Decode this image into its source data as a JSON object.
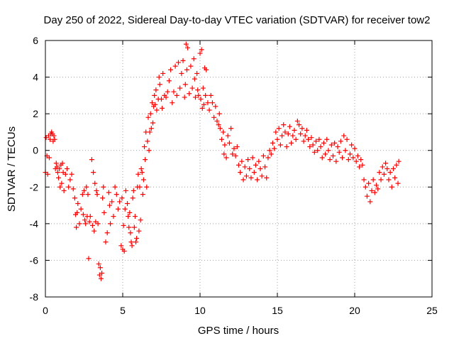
{
  "chart_data": {
    "type": "scatter",
    "title": "Day 250 of 2022, Sidereal Day-to-day VTEC variation (SDTVAR) for receiver tow2",
    "xlabel": "GPS time / hours",
    "ylabel": "SDTVAR / TECUs",
    "xlim": [
      0,
      25
    ],
    "ylim": [
      -8,
      6
    ],
    "xticks": [
      0,
      5,
      10,
      15,
      20,
      25
    ],
    "yticks": [
      -8,
      -6,
      -4,
      -2,
      0,
      2,
      4,
      6
    ],
    "xtick_labels": [
      "0",
      "5",
      "10",
      "15",
      "20",
      "25"
    ],
    "ytick_labels": [
      "-8",
      "-6",
      "-4",
      "-2",
      "0",
      "2",
      "4",
      "6"
    ],
    "grid": true,
    "marker": "+",
    "series": [
      {
        "name": "SDTVAR",
        "color": "#ff0000",
        "points": [
          [
            0.0,
            -1.2
          ],
          [
            0.05,
            0.7
          ],
          [
            0.1,
            -0.3
          ],
          [
            0.15,
            -1.3
          ],
          [
            0.2,
            0.8
          ],
          [
            0.25,
            -0.4
          ],
          [
            0.3,
            0.6
          ],
          [
            0.35,
            0.9
          ],
          [
            0.4,
            1.0
          ],
          [
            0.45,
            0.9
          ],
          [
            0.5,
            0.5
          ],
          [
            0.55,
            0.8
          ],
          [
            0.6,
            0.6
          ],
          [
            0.65,
            -1.0
          ],
          [
            0.7,
            -0.7
          ],
          [
            0.75,
            -0.9
          ],
          [
            0.8,
            -1.2
          ],
          [
            0.85,
            -1.5
          ],
          [
            0.9,
            -1.0
          ],
          [
            0.95,
            -2.0
          ],
          [
            1.0,
            -0.8
          ],
          [
            1.05,
            -1.8
          ],
          [
            1.1,
            -0.7
          ],
          [
            1.15,
            -1.2
          ],
          [
            1.2,
            -2.2
          ],
          [
            1.3,
            -1.3
          ],
          [
            1.4,
            -1.0
          ],
          [
            1.5,
            -2.0
          ],
          [
            1.6,
            -1.6
          ],
          [
            1.7,
            -1.3
          ],
          [
            1.8,
            -2.1
          ],
          [
            1.9,
            -2.6
          ],
          [
            1.95,
            -3.5
          ],
          [
            2.0,
            -4.2
          ],
          [
            2.05,
            -3.4
          ],
          [
            2.1,
            -2.9
          ],
          [
            2.2,
            -4.0
          ],
          [
            2.3,
            -3.2
          ],
          [
            2.4,
            -2.4
          ],
          [
            2.45,
            -3.5
          ],
          [
            2.5,
            -2.2
          ],
          [
            2.55,
            -3.8
          ],
          [
            2.6,
            -4.0
          ],
          [
            2.65,
            -2.0
          ],
          [
            2.7,
            -3.6
          ],
          [
            2.75,
            -2.4
          ],
          [
            2.8,
            -5.9
          ],
          [
            2.85,
            -3.9
          ],
          [
            2.9,
            -3.6
          ],
          [
            3.0,
            -0.5
          ],
          [
            3.05,
            -4.1
          ],
          [
            3.1,
            -1.2
          ],
          [
            3.15,
            -4.4
          ],
          [
            3.2,
            -1.8
          ],
          [
            3.25,
            -3.9
          ],
          [
            3.3,
            -2.2
          ],
          [
            3.35,
            -2.4
          ],
          [
            3.4,
            -4.0
          ],
          [
            3.45,
            -6.2
          ],
          [
            3.5,
            -6.8
          ],
          [
            3.55,
            -6.4
          ],
          [
            3.6,
            -7.0
          ],
          [
            3.65,
            -6.7
          ],
          [
            3.7,
            -2.6
          ],
          [
            3.75,
            -2.0
          ],
          [
            3.8,
            -3.4
          ],
          [
            3.9,
            -5.0
          ],
          [
            4.0,
            -4.5
          ],
          [
            4.1,
            -2.3
          ],
          [
            4.15,
            -3.0
          ],
          [
            4.2,
            -4.0
          ],
          [
            4.3,
            -2.8
          ],
          [
            4.4,
            -3.6
          ],
          [
            4.5,
            -2.0
          ],
          [
            4.6,
            -2.4
          ],
          [
            4.7,
            -3.2
          ],
          [
            4.8,
            -2.8
          ],
          [
            4.9,
            -5.2
          ],
          [
            4.95,
            -2.6
          ],
          [
            5.0,
            -5.4
          ],
          [
            5.05,
            -4.1
          ],
          [
            5.1,
            -5.5
          ],
          [
            5.15,
            -3.2
          ],
          [
            5.2,
            -2.2
          ],
          [
            5.3,
            -2.9
          ],
          [
            5.35,
            -3.6
          ],
          [
            5.4,
            -4.2
          ],
          [
            5.45,
            -3.4
          ],
          [
            5.5,
            -4.5
          ],
          [
            5.55,
            -5.0
          ],
          [
            5.6,
            -5.2
          ],
          [
            5.65,
            -2.6
          ],
          [
            5.7,
            -2.2
          ],
          [
            5.75,
            -4.2
          ],
          [
            5.8,
            -3.6
          ],
          [
            5.85,
            -5.0
          ],
          [
            5.9,
            -4.8
          ],
          [
            5.95,
            -2.0
          ],
          [
            6.0,
            -1.3
          ],
          [
            6.05,
            -4.4
          ],
          [
            6.1,
            -2.0
          ],
          [
            6.15,
            -3.8
          ],
          [
            6.2,
            -1.0
          ],
          [
            6.25,
            -1.2
          ],
          [
            6.3,
            -2.4
          ],
          [
            6.35,
            -1.6
          ],
          [
            6.4,
            0.2
          ],
          [
            6.45,
            -0.5
          ],
          [
            6.5,
            1.0
          ],
          [
            6.55,
            -2.0
          ],
          [
            6.6,
            0.5
          ],
          [
            6.65,
            1.8
          ],
          [
            6.7,
            0.0
          ],
          [
            6.75,
            1.0
          ],
          [
            6.8,
            2.0
          ],
          [
            6.85,
            1.2
          ],
          [
            6.9,
            2.6
          ],
          [
            6.95,
            1.5
          ],
          [
            7.0,
            2.4
          ],
          [
            7.05,
            3.0
          ],
          [
            7.1,
            2.5
          ],
          [
            7.15,
            3.3
          ],
          [
            7.2,
            2.2
          ],
          [
            7.3,
            2.8
          ],
          [
            7.35,
            4.0
          ],
          [
            7.4,
            3.6
          ],
          [
            7.5,
            2.8
          ],
          [
            7.55,
            2.3
          ],
          [
            7.6,
            4.2
          ],
          [
            7.7,
            3.0
          ],
          [
            7.8,
            2.9
          ],
          [
            7.9,
            3.2
          ],
          [
            8.0,
            3.8
          ],
          [
            8.1,
            4.4
          ],
          [
            8.2,
            2.6
          ],
          [
            8.3,
            3.2
          ],
          [
            8.4,
            4.6
          ],
          [
            8.5,
            3.0
          ],
          [
            8.6,
            4.8
          ],
          [
            8.7,
            3.4
          ],
          [
            8.8,
            4.2
          ],
          [
            8.9,
            4.9
          ],
          [
            9.0,
            2.9
          ],
          [
            9.05,
            3.6
          ],
          [
            9.1,
            5.8
          ],
          [
            9.15,
            4.4
          ],
          [
            9.2,
            5.6
          ],
          [
            9.3,
            3.1
          ],
          [
            9.4,
            4.6
          ],
          [
            9.5,
            3.4
          ],
          [
            9.6,
            5.0
          ],
          [
            9.65,
            3.9
          ],
          [
            9.7,
            2.9
          ],
          [
            9.8,
            4.2
          ],
          [
            9.85,
            3.3
          ],
          [
            9.9,
            3.0
          ],
          [
            10.0,
            5.3
          ],
          [
            10.05,
            2.8
          ],
          [
            10.1,
            5.5
          ],
          [
            10.15,
            2.3
          ],
          [
            10.2,
            3.4
          ],
          [
            10.25,
            2.5
          ],
          [
            10.3,
            4.5
          ],
          [
            10.35,
            3.0
          ],
          [
            10.4,
            4.4
          ],
          [
            10.5,
            2.6
          ],
          [
            10.6,
            2.2
          ],
          [
            10.7,
            3.0
          ],
          [
            10.8,
            2.6
          ],
          [
            10.9,
            1.8
          ],
          [
            11.0,
            2.4
          ],
          [
            11.1,
            1.6
          ],
          [
            11.2,
            1.4
          ],
          [
            11.25,
            2.0
          ],
          [
            11.3,
            1.2
          ],
          [
            11.4,
            0.6
          ],
          [
            11.5,
            1.0
          ],
          [
            11.55,
            -0.2
          ],
          [
            11.6,
            0.3
          ],
          [
            11.7,
            -0.4
          ],
          [
            11.8,
            0.8
          ],
          [
            11.9,
            0.4
          ],
          [
            12.0,
            1.2
          ],
          [
            12.1,
            -0.2
          ],
          [
            12.2,
            0.1
          ],
          [
            12.3,
            -0.3
          ],
          [
            12.4,
            0.2
          ],
          [
            12.5,
            -0.8
          ],
          [
            12.6,
            -1.2
          ],
          [
            12.7,
            -0.6
          ],
          [
            12.8,
            -1.6
          ],
          [
            12.9,
            -0.9
          ],
          [
            13.0,
            -1.4
          ],
          [
            13.1,
            -0.5
          ],
          [
            13.2,
            -1.0
          ],
          [
            13.3,
            -1.5
          ],
          [
            13.4,
            -0.4
          ],
          [
            13.5,
            -1.2
          ],
          [
            13.6,
            -0.8
          ],
          [
            13.7,
            -1.6
          ],
          [
            13.8,
            -0.6
          ],
          [
            13.9,
            -1.0
          ],
          [
            14.0,
            -1.4
          ],
          [
            14.1,
            -0.3
          ],
          [
            14.2,
            -0.9
          ],
          [
            14.3,
            -1.5
          ],
          [
            14.4,
            -0.4
          ],
          [
            14.5,
            0.0
          ],
          [
            14.6,
            -0.2
          ],
          [
            14.7,
            0.4
          ],
          [
            14.8,
            0.1
          ],
          [
            14.9,
            1.0
          ],
          [
            15.0,
            0.6
          ],
          [
            15.1,
            1.2
          ],
          [
            15.2,
            0.3
          ],
          [
            15.3,
            0.8
          ],
          [
            15.4,
            1.4
          ],
          [
            15.5,
            1.0
          ],
          [
            15.6,
            0.2
          ],
          [
            15.7,
            0.9
          ],
          [
            15.8,
            1.3
          ],
          [
            15.9,
            0.4
          ],
          [
            16.0,
            0.8
          ],
          [
            16.1,
            1.1
          ],
          [
            16.2,
            0.6
          ],
          [
            16.3,
            1.6
          ],
          [
            16.4,
            1.4
          ],
          [
            16.5,
            0.9
          ],
          [
            16.6,
            1.2
          ],
          [
            16.7,
            0.5
          ],
          [
            16.8,
            0.8
          ],
          [
            16.9,
            1.1
          ],
          [
            17.0,
            0.6
          ],
          [
            17.1,
            0.2
          ],
          [
            17.2,
            0.7
          ],
          [
            17.3,
            0.3
          ],
          [
            17.4,
            -0.1
          ],
          [
            17.5,
            0.5
          ],
          [
            17.6,
            0.0
          ],
          [
            17.7,
            0.6
          ],
          [
            17.8,
            0.2
          ],
          [
            17.9,
            -0.4
          ],
          [
            18.0,
            0.4
          ],
          [
            18.1,
            -0.2
          ],
          [
            18.2,
            0.6
          ],
          [
            18.3,
            0.0
          ],
          [
            18.4,
            -0.5
          ],
          [
            18.5,
            0.3
          ],
          [
            18.6,
            -0.3
          ],
          [
            18.7,
            0.4
          ],
          [
            18.8,
            -0.6
          ],
          [
            18.9,
            0.2
          ],
          [
            19.0,
            -0.1
          ],
          [
            19.1,
            0.5
          ],
          [
            19.2,
            -0.4
          ],
          [
            19.3,
            0.8
          ],
          [
            19.4,
            0.0
          ],
          [
            19.5,
            0.6
          ],
          [
            19.6,
            -0.5
          ],
          [
            19.7,
            -0.2
          ],
          [
            19.8,
            0.3
          ],
          [
            19.9,
            -0.4
          ],
          [
            20.0,
            0.1
          ],
          [
            20.1,
            -0.6
          ],
          [
            20.2,
            -0.3
          ],
          [
            20.3,
            -0.9
          ],
          [
            20.4,
            -0.5
          ],
          [
            20.5,
            -0.8
          ],
          [
            20.6,
            -1.6
          ],
          [
            20.7,
            -2.0
          ],
          [
            20.8,
            -2.5
          ],
          [
            20.9,
            -1.8
          ],
          [
            21.0,
            -2.8
          ],
          [
            21.1,
            -2.2
          ],
          [
            21.2,
            -1.6
          ],
          [
            21.3,
            -2.3
          ],
          [
            21.4,
            -1.9
          ],
          [
            21.5,
            -2.1
          ],
          [
            21.6,
            -1.2
          ],
          [
            21.7,
            -1.6
          ],
          [
            21.8,
            -0.9
          ],
          [
            21.9,
            -1.3
          ],
          [
            22.0,
            -0.7
          ],
          [
            22.1,
            -1.0
          ],
          [
            22.2,
            -1.6
          ],
          [
            22.3,
            -1.2
          ],
          [
            22.4,
            -2.0
          ],
          [
            22.5,
            -1.0
          ],
          [
            22.6,
            -1.5
          ],
          [
            22.7,
            -0.8
          ],
          [
            22.8,
            -1.8
          ],
          [
            22.85,
            -0.6
          ]
        ]
      }
    ]
  }
}
